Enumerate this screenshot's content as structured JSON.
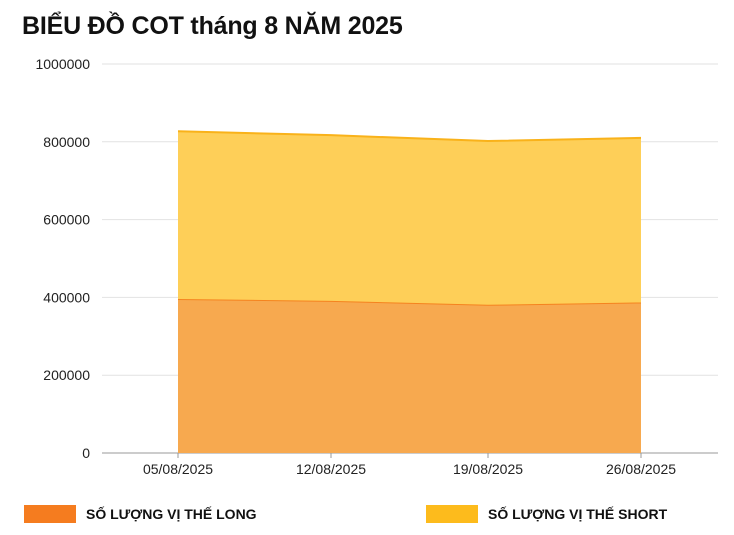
{
  "chart_data": {
    "type": "area",
    "title": "BIỂU ĐỒ COT tháng 8 NĂM 2025",
    "categories": [
      "05/08/2025",
      "12/08/2025",
      "19/08/2025",
      "26/08/2025"
    ],
    "stacked": true,
    "ylim": [
      0,
      1000000
    ],
    "yticks": [
      "0",
      "200000",
      "400000",
      "600000",
      "800000",
      "1000000"
    ],
    "grid": true,
    "legend_position": "bottom",
    "series": [
      {
        "name": "SỐ LƯỢNG VỊ THẾ LONG",
        "values": [
          396000,
          391000,
          381000,
          387000
        ],
        "fill": "#f7a94f",
        "line": "#f5831f",
        "swatch": "#f57c1f"
      },
      {
        "name": "SỐ LƯỢNG VỊ THẾ SHORT",
        "values": [
          431000,
          426000,
          421000,
          423000
        ],
        "fill": "#fecf58",
        "line": "#f9b21a",
        "swatch": "#fdbb1c"
      }
    ]
  }
}
